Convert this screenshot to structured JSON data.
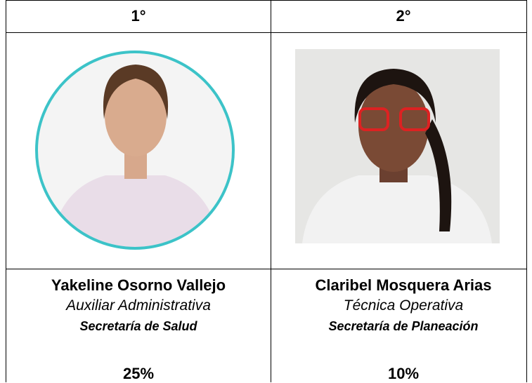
{
  "table": {
    "headers": [
      "1°",
      "2°"
    ],
    "people": [
      {
        "name": "Yakeline Osorno Vallejo",
        "role": "Auxiliar Administrativa",
        "department": "Secretaría de Salud",
        "share": "25%"
      },
      {
        "name": "Claribel Mosquera Arias",
        "role": "Técnica Operativa",
        "department": "Secretaría de Planeación",
        "share": "10%"
      }
    ]
  }
}
